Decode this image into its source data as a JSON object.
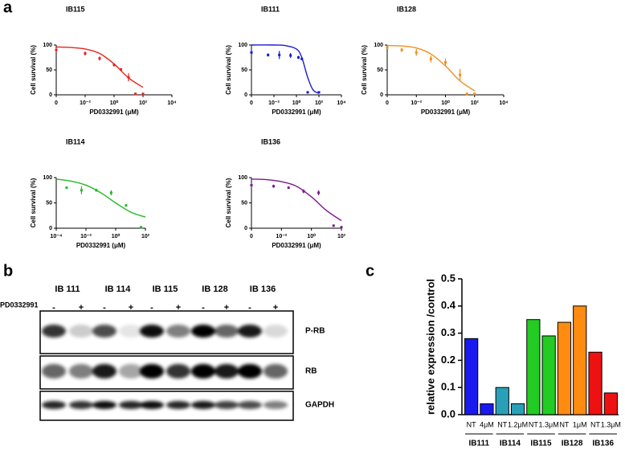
{
  "panel_labels": [
    "a",
    "b",
    "c"
  ],
  "chart_data": [
    {
      "type": "dose-response",
      "title": "IB115",
      "xlabel": "PD0332991 (μM)",
      "ylabel": "Cell survival (%)",
      "color": "#e8231f",
      "log_x": true,
      "xlim": [
        0.0001,
        10000
      ],
      "xticks": [
        {
          "value": 0.0001,
          "label": "0"
        },
        {
          "value": 0.01,
          "label": "10⁻²"
        },
        {
          "value": 1,
          "label": "10⁰"
        },
        {
          "value": 100,
          "label": "10²"
        },
        {
          "value": 10000,
          "label": "10⁴"
        }
      ],
      "ylim": [
        0,
        100
      ],
      "yticks": [
        0,
        50,
        100
      ],
      "points": {
        "x": [
          0.0001,
          0.01,
          0.1,
          1,
          3,
          10,
          30,
          100
        ],
        "values": [
          90,
          83,
          73,
          60,
          51,
          35,
          2,
          2
        ],
        "errors": [
          4,
          4,
          4,
          3,
          2,
          8,
          1,
          1
        ]
      },
      "fit": {
        "x": [
          0.0001,
          0.001,
          0.01,
          0.1,
          1,
          10,
          100
        ],
        "values": [
          96,
          95,
          92,
          83,
          62,
          34,
          15
        ]
      }
    },
    {
      "type": "dose-response",
      "title": "IB111",
      "xlabel": "PD0332991 (μM)",
      "ylabel": "Cell survival (%)",
      "color": "#1a1ad0",
      "log_x": true,
      "xlim": [
        0.0001,
        10000
      ],
      "xticks": [
        {
          "value": 0.0001,
          "label": "0"
        },
        {
          "value": 0.01,
          "label": "10⁻²"
        },
        {
          "value": 1,
          "label": "10⁰"
        },
        {
          "value": 100,
          "label": "10²"
        },
        {
          "value": 10000,
          "label": "10⁴"
        }
      ],
      "ylim": [
        0,
        100
      ],
      "yticks": [
        0,
        50,
        100
      ],
      "points": {
        "x": [
          0.0001,
          0.003,
          0.03,
          0.3,
          1.5,
          3,
          10,
          100
        ],
        "values": [
          85,
          80,
          80,
          79,
          75,
          72,
          5,
          5
        ],
        "errors": [
          5,
          3,
          8,
          5,
          3,
          2,
          1,
          1
        ]
      },
      "fit": {
        "x": [
          0.0001,
          0.01,
          0.1,
          1,
          3,
          10,
          30,
          100
        ],
        "values": [
          100,
          100,
          99,
          92,
          75,
          35,
          10,
          3
        ]
      }
    },
    {
      "type": "dose-response",
      "title": "IB128",
      "xlabel": "PD0332991 (μM)",
      "ylabel": "Cell survival (%)",
      "color": "#f28c1c",
      "log_x": true,
      "xlim": [
        0.0001,
        10000
      ],
      "xticks": [
        {
          "value": 0.0001,
          "label": "0"
        },
        {
          "value": 0.01,
          "label": "10⁻²"
        },
        {
          "value": 1,
          "label": "10⁰"
        },
        {
          "value": 100,
          "label": "10²"
        },
        {
          "value": 10000,
          "label": "10⁴"
        }
      ],
      "ylim": [
        0,
        100
      ],
      "yticks": [
        0,
        50,
        100
      ],
      "points": {
        "x": [
          0.0001,
          0.001,
          0.01,
          0.1,
          1,
          10,
          30,
          100
        ],
        "values": [
          95,
          90,
          85,
          72,
          65,
          40,
          2,
          2
        ],
        "errors": [
          3,
          4,
          7,
          7,
          8,
          12,
          1,
          1
        ]
      },
      "fit": {
        "x": [
          0.0001,
          0.001,
          0.01,
          0.1,
          1,
          10,
          100
        ],
        "values": [
          99,
          98,
          94,
          82,
          58,
          28,
          8
        ]
      }
    },
    {
      "type": "dose-response",
      "title": "IB114",
      "xlabel": "PD0332991 (μM)",
      "ylabel": "Cell survival (%)",
      "color": "#22bb22",
      "log_x": true,
      "xlim": [
        0.0001,
        100
      ],
      "xticks": [
        {
          "value": 0.0001,
          "label": "10⁻⁴"
        },
        {
          "value": 0.01,
          "label": "10⁻²"
        },
        {
          "value": 1,
          "label": "10⁰"
        },
        {
          "value": 100,
          "label": "10²"
        }
      ],
      "ylim": [
        0,
        100
      ],
      "yticks": [
        0,
        50,
        100
      ],
      "points": {
        "x": [
          0.0005,
          0.005,
          0.05,
          0.5,
          5,
          50
        ],
        "values": [
          80,
          75,
          75,
          70,
          45,
          2
        ],
        "errors": [
          1,
          8,
          3,
          5,
          1,
          1
        ]
      },
      "fit": {
        "x": [
          0.0001,
          0.001,
          0.01,
          0.1,
          1,
          10,
          100
        ],
        "values": [
          97,
          93,
          85,
          70,
          50,
          32,
          22
        ]
      }
    },
    {
      "type": "dose-response",
      "title": "IB136",
      "xlabel": "PD0332991 (μM)",
      "ylabel": "Cell survival (%)",
      "color": "#7a1a8a",
      "log_x": true,
      "xlim": [
        0.0001,
        100
      ],
      "xticks": [
        {
          "value": 0.0001,
          "label": "0"
        },
        {
          "value": 0.01,
          "label": "10⁻²"
        },
        {
          "value": 1,
          "label": "10⁰"
        },
        {
          "value": 100,
          "label": "10²"
        }
      ],
      "ylim": [
        0,
        100
      ],
      "yticks": [
        0,
        50,
        100
      ],
      "points": {
        "x": [
          0.0001,
          0.003,
          0.03,
          0.3,
          3,
          30,
          100
        ],
        "values": [
          85,
          83,
          80,
          73,
          70,
          5,
          2
        ],
        "errors": [
          5,
          3,
          2,
          4,
          5,
          1,
          1
        ]
      },
      "fit": {
        "x": [
          0.0001,
          0.001,
          0.01,
          0.1,
          1,
          10,
          100
        ],
        "values": [
          97,
          96,
          92,
          83,
          62,
          35,
          15
        ]
      }
    },
    {
      "type": "bar",
      "ylabel": "relative expression /control",
      "categories": [
        "NT",
        "4μM",
        "NT",
        "1.2μM",
        "NT",
        "1.3μM",
        "NT",
        "1μM",
        "NT",
        "1.3μM"
      ],
      "groups": [
        "IB111",
        "IB114",
        "IB115",
        "IB128",
        "IB136"
      ],
      "values": [
        0.28,
        0.04,
        0.1,
        0.04,
        0.35,
        0.29,
        0.34,
        0.4,
        0.23,
        0.08
      ],
      "colors": [
        "#1a1aee",
        "#1a1aee",
        "#2aa0b8",
        "#2aa0b8",
        "#22cc22",
        "#22cc22",
        "#ff8c10",
        "#ff8c10",
        "#ee1111",
        "#ee1111"
      ],
      "ylim": [
        0,
        0.5
      ],
      "yticks": [
        {
          "value": 0,
          "label": "0.0"
        },
        0.1,
        0.2,
        0.3,
        0.4,
        0.5
      ]
    }
  ],
  "blot": {
    "treatment": "PD0332991",
    "lines": [
      "IB 111",
      "IB 114",
      "IB 115",
      "IB 128",
      "IB 136"
    ],
    "conditions": [
      "-",
      "+"
    ],
    "rows": [
      "P-RB",
      "RB",
      "GAPDH"
    ]
  }
}
